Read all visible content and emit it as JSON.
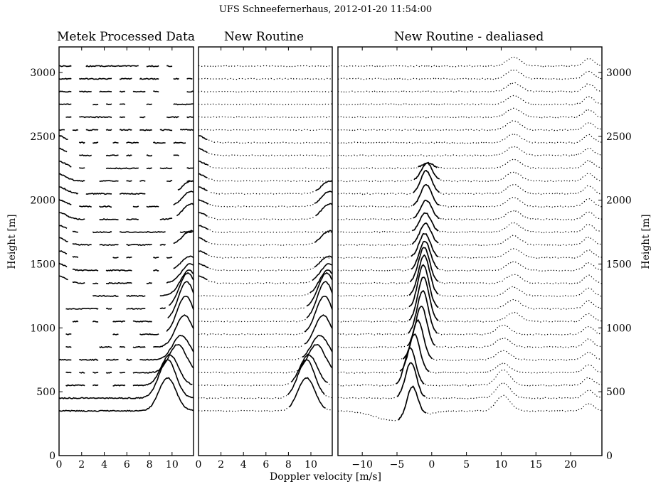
{
  "figure": {
    "suptitle": "UFS Schneefernerhaus, 2012-01-20 11:54:00",
    "xlabel": "Doppler velocity [m/s]",
    "ylabel_left": "Height [m]",
    "ylabel_right": "Height [m]"
  },
  "chart_data": [
    {
      "type": "line",
      "title": "Metek Processed Data",
      "xlabel": "",
      "ylabel": "Height [m]",
      "xlim": [
        0,
        11.9
      ],
      "ylim": [
        0,
        3200
      ],
      "xticks": [
        0,
        2,
        4,
        6,
        8,
        10
      ],
      "yticks": [
        0,
        500,
        1000,
        1500,
        2000,
        2500,
        3000
      ],
      "line_style": "solid",
      "gaps": true,
      "heights": [
        350,
        450,
        550,
        650,
        750,
        850,
        950,
        1050,
        1150,
        1250,
        1350,
        1450,
        1550,
        1650,
        1750,
        1850,
        1950,
        2050,
        2150,
        2250,
        2350,
        2450,
        2550,
        2650,
        2750,
        2850,
        2950,
        3050
      ],
      "peaks": [
        {
          "height": 350,
          "center": 9.6,
          "amp": 260
        },
        {
          "height": 450,
          "center": 9.6,
          "amp": 300
        },
        {
          "height": 550,
          "center": 9.8,
          "amp": 240
        },
        {
          "height": 650,
          "center": 10.5,
          "amp": 220
        },
        {
          "height": 750,
          "center": 10.8,
          "amp": 190
        },
        {
          "height": 850,
          "center": 11.1,
          "amp": 250
        },
        {
          "height": 950,
          "center": 11.2,
          "amp": 300
        },
        {
          "height": 1050,
          "center": 11.3,
          "amp": 310
        },
        {
          "height": 1150,
          "center": 11.4,
          "amp": 280
        },
        {
          "height": 1250,
          "center": 11.5,
          "amp": 200
        },
        {
          "height": 1350,
          "center": 11.6,
          "amp": 150
        },
        {
          "height": 1450,
          "center": 11.6,
          "amp": 110
        },
        {
          "height": 1650,
          "center": 11.7,
          "amp": 110
        },
        {
          "height": 1850,
          "center": 11.7,
          "amp": 120
        },
        {
          "height": 1950,
          "center": 11.7,
          "amp": 120
        },
        {
          "height": 2050,
          "center": 11.7,
          "amp": 100
        }
      ]
    },
    {
      "type": "line",
      "title": "New Routine",
      "xlabel": "",
      "ylabel": "",
      "xlim": [
        0,
        11.9
      ],
      "ylim": [
        0,
        3200
      ],
      "xticks": [
        0,
        2,
        4,
        6,
        8,
        10
      ],
      "yticks": [],
      "line_style": "solid; dotted above noise floor",
      "gaps": false
    },
    {
      "type": "line",
      "title": "New Routine - dealiased",
      "xlabel": "",
      "ylabel": "Height [m]",
      "xlim": [
        -13.5,
        24.5
      ],
      "ylim": [
        0,
        3200
      ],
      "xticks": [
        -10,
        -5,
        0,
        5,
        10,
        15,
        20
      ],
      "yticks": [
        0,
        500,
        1000,
        1500,
        2000,
        2500,
        3000
      ],
      "yaxis_side": "right",
      "main_peaks": [
        {
          "height": 350,
          "center": -2.8,
          "amp": 250
        },
        {
          "height": 450,
          "center": -3.0,
          "amp": 280
        },
        {
          "height": 550,
          "center": -3.1,
          "amp": 290
        },
        {
          "height": 650,
          "center": -2.5,
          "amp": 300
        },
        {
          "height": 750,
          "center": -2.0,
          "amp": 310
        },
        {
          "height": 850,
          "center": -1.5,
          "amp": 320
        },
        {
          "height": 950,
          "center": -1.3,
          "amp": 340
        },
        {
          "height": 1050,
          "center": -1.2,
          "amp": 350
        },
        {
          "height": 1150,
          "center": -1.2,
          "amp": 340
        },
        {
          "height": 1250,
          "center": -1.1,
          "amp": 320
        },
        {
          "height": 1350,
          "center": -1.1,
          "amp": 280
        },
        {
          "height": 1450,
          "center": -1.0,
          "amp": 230
        },
        {
          "height": 1550,
          "center": -1.0,
          "amp": 190
        },
        {
          "height": 1650,
          "center": -0.9,
          "amp": 170
        },
        {
          "height": 1750,
          "center": -0.9,
          "amp": 150
        },
        {
          "height": 1850,
          "center": -0.8,
          "amp": 150
        },
        {
          "height": 1950,
          "center": -0.8,
          "amp": 170
        },
        {
          "height": 2050,
          "center": -0.8,
          "amp": 180
        },
        {
          "height": 2150,
          "center": -0.7,
          "amp": 140
        },
        {
          "height": 2250,
          "center": -0.6,
          "amp": 40
        }
      ]
    }
  ]
}
